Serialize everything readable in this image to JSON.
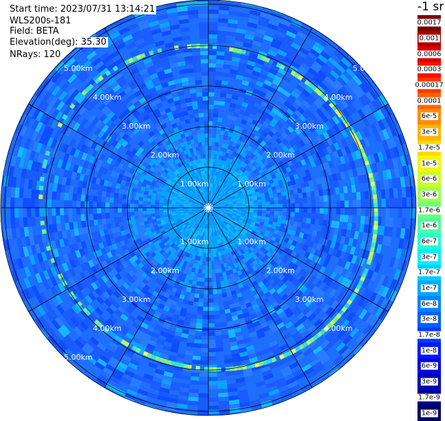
{
  "header": {
    "start_time": "Start time: 2023/07/31 13:14:21",
    "instrument": "WLS200s-181",
    "field": "Field: BETA",
    "elevation": "Elevation(deg): 35.30",
    "nrays": "NRays: 120"
  },
  "colorbar": {
    "unit_label": "-1 sr",
    "levels": [
      {
        "label": "0.0017",
        "color": "#7a0000"
      },
      {
        "label": "0.001",
        "color": "#a80000"
      },
      {
        "label": "0.0006",
        "color": "#d80000"
      },
      {
        "label": "0.0003",
        "color": "#ff0c00"
      },
      {
        "label": "0.00017",
        "color": "#ff3800"
      },
      {
        "label": "0.0001",
        "color": "#ff6400"
      },
      {
        "label": "6e-5",
        "color": "#ff8c00"
      },
      {
        "label": "3e-5",
        "color": "#ffb400"
      },
      {
        "label": "1.7e-5",
        "color": "#ffd800"
      },
      {
        "label": "1e-5",
        "color": "#f2f700"
      },
      {
        "label": "6e-6",
        "color": "#c8ff20"
      },
      {
        "label": "3e-6",
        "color": "#9cff50"
      },
      {
        "label": "1.7e-6",
        "color": "#72ff7a"
      },
      {
        "label": "1e-6",
        "color": "#4affa6"
      },
      {
        "label": "6e-7",
        "color": "#22ffd2"
      },
      {
        "label": "3e-7",
        "color": "#00f0ff"
      },
      {
        "label": "1.7e-7",
        "color": "#00ccff"
      },
      {
        "label": "1e-7",
        "color": "#00a8ff"
      },
      {
        "label": "6e-8",
        "color": "#0084ff"
      },
      {
        "label": "3e-8",
        "color": "#0060ff"
      },
      {
        "label": "1.7e-8",
        "color": "#003cff"
      },
      {
        "label": "1e-8",
        "color": "#0018ff"
      },
      {
        "label": "6e-9",
        "color": "#0000e8"
      },
      {
        "label": "3e-9",
        "color": "#0000bc"
      },
      {
        "label": "1.7e-9",
        "color": "#000090"
      },
      {
        "label": "1e-9",
        "color": "#000064"
      }
    ]
  },
  "plot": {
    "ring_labels": [
      "1.00km",
      "2.00km",
      "3.00km",
      "4.00km",
      "5.00km"
    ],
    "background_color": "#1e6eff",
    "ring_line_color": "#000000"
  }
}
